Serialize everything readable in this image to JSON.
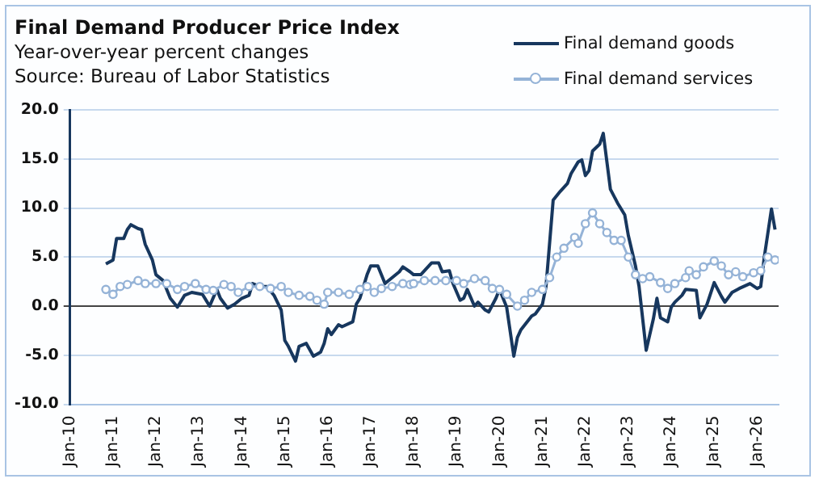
{
  "chart_data": {
    "type": "line",
    "title": "Final Demand Producer Price Index",
    "subtitle": "Year-over-year percent changes",
    "annotations": [
      "Source: Bureau of Labor Statistics"
    ],
    "legend": "top right",
    "grid": "y",
    "xlim": [
      "2010-01",
      "2026-07"
    ],
    "xticks": [
      {
        "value": "2010-01",
        "label": "Jan-10"
      },
      {
        "value": "2011-01",
        "label": "Jan-11"
      },
      {
        "value": "2012-01",
        "label": "Jan-12"
      },
      {
        "value": "2013-01",
        "label": "Jan-13"
      },
      {
        "value": "2014-01",
        "label": "Jan-14"
      },
      {
        "value": "2015-01",
        "label": "Jan-15"
      },
      {
        "value": "2016-01",
        "label": "Jan-16"
      },
      {
        "value": "2017-01",
        "label": "Jan-17"
      },
      {
        "value": "2018-01",
        "label": "Jan-18"
      },
      {
        "value": "2019-01",
        "label": "Jan-19"
      },
      {
        "value": "2020-01",
        "label": "Jan-20"
      },
      {
        "value": "2021-01",
        "label": "Jan-21"
      },
      {
        "value": "2022-01",
        "label": "Jan-22"
      },
      {
        "value": "2023-01",
        "label": "Jan-23"
      },
      {
        "value": "2024-01",
        "label": "Jan-24"
      },
      {
        "value": "2025-01",
        "label": "Jan-25"
      },
      {
        "value": "2026-01",
        "label": "Jan-26"
      }
    ],
    "ylim": [
      -10,
      20
    ],
    "yticks": [
      {
        "value": -10,
        "label": "-10.0"
      },
      {
        "value": -5,
        "label": "-5.0"
      },
      {
        "value": 0,
        "label": "0.0"
      },
      {
        "value": 5,
        "label": "5.0"
      },
      {
        "value": 10,
        "label": "10.0"
      },
      {
        "value": 15,
        "label": "15.0"
      },
      {
        "value": 20,
        "label": "20.0"
      }
    ],
    "series": [
      {
        "name": "Final demand goods",
        "color": "#17375e",
        "marker": "none",
        "x": [
          "2010-11",
          "2011-01",
          "2011-02",
          "2011-04",
          "2011-05",
          "2011-06",
          "2011-08",
          "2011-09",
          "2011-10",
          "2011-12",
          "2012-01",
          "2012-03",
          "2012-05",
          "2012-07",
          "2012-09",
          "2012-11",
          "2013-02",
          "2013-04",
          "2013-06",
          "2013-07",
          "2013-09",
          "2013-11",
          "2014-01",
          "2014-03",
          "2014-04",
          "2014-06",
          "2014-08",
          "2014-10",
          "2014-12",
          "2015-01",
          "2015-02",
          "2015-04",
          "2015-05",
          "2015-07",
          "2015-09",
          "2015-11",
          "2015-12",
          "2016-01",
          "2016-02",
          "2016-04",
          "2016-05",
          "2016-08",
          "2016-09",
          "2016-10",
          "2016-12",
          "2017-01",
          "2017-03",
          "2017-05",
          "2017-07",
          "2017-09",
          "2017-10",
          "2017-12",
          "2018-01",
          "2018-03",
          "2018-06",
          "2018-08",
          "2018-09",
          "2018-11",
          "2018-12",
          "2019-02",
          "2019-03",
          "2019-04",
          "2019-06",
          "2019-07",
          "2019-09",
          "2019-10",
          "2019-12",
          "2020-01",
          "2020-03",
          "2020-05",
          "2020-06",
          "2020-07",
          "2020-10",
          "2020-11",
          "2021-01",
          "2021-02",
          "2021-04",
          "2021-06",
          "2021-08",
          "2021-09",
          "2021-11",
          "2021-12",
          "2022-01",
          "2022-02",
          "2022-03",
          "2022-05",
          "2022-06",
          "2022-08",
          "2022-10",
          "2022-12",
          "2023-01",
          "2023-03",
          "2023-04",
          "2023-06",
          "2023-08",
          "2023-09",
          "2023-10",
          "2023-12",
          "2024-01",
          "2024-02",
          "2024-04",
          "2024-05",
          "2024-08",
          "2024-09",
          "2024-11",
          "2025-01",
          "2025-03",
          "2025-04",
          "2025-06",
          "2025-08",
          "2025-11",
          "2026-01",
          "2026-02",
          "2026-03",
          "2026-05",
          "2026-06"
        ],
        "values": [
          4.3,
          4.7,
          6.9,
          6.9,
          7.8,
          8.3,
          7.9,
          7.8,
          6.3,
          4.7,
          3.2,
          2.6,
          0.8,
          -0.1,
          1.1,
          1.4,
          1.2,
          0.0,
          1.7,
          0.8,
          -0.2,
          0.2,
          0.8,
          1.1,
          2.3,
          2.0,
          2.0,
          1.1,
          -0.4,
          -3.5,
          -4.1,
          -5.6,
          -4.1,
          -3.8,
          -5.1,
          -4.7,
          -3.8,
          -2.3,
          -2.9,
          -1.9,
          -2.1,
          -1.6,
          0.2,
          0.8,
          3.2,
          4.1,
          4.1,
          2.3,
          2.9,
          3.5,
          4.0,
          3.5,
          3.2,
          3.2,
          4.4,
          4.4,
          3.5,
          3.6,
          2.3,
          0.6,
          0.8,
          1.7,
          0.0,
          0.4,
          -0.4,
          -0.6,
          0.8,
          1.7,
          -0.1,
          -5.1,
          -3.2,
          -2.4,
          -1.0,
          -0.8,
          0.2,
          2.0,
          10.8,
          11.7,
          12.5,
          13.5,
          14.7,
          14.9,
          13.3,
          13.8,
          15.8,
          16.5,
          17.6,
          11.9,
          10.5,
          9.3,
          7.2,
          4.1,
          2.0,
          -4.5,
          -1.3,
          0.8,
          -1.2,
          -1.6,
          -0.1,
          0.4,
          1.1,
          1.7,
          1.6,
          -1.2,
          0.2,
          2.4,
          1.0,
          0.4,
          1.4,
          1.8,
          2.3,
          1.8,
          2.0,
          5.0,
          9.9,
          7.8
        ]
      },
      {
        "name": "Final demand services",
        "color": "#95b3d7",
        "marker": "circle",
        "x": [
          "2010-11",
          "2011-01",
          "2011-03",
          "2011-05",
          "2011-08",
          "2011-10",
          "2012-01",
          "2012-04",
          "2012-07",
          "2012-09",
          "2012-12",
          "2013-03",
          "2013-05",
          "2013-08",
          "2013-10",
          "2013-12",
          "2014-03",
          "2014-06",
          "2014-09",
          "2014-12",
          "2015-02",
          "2015-05",
          "2015-08",
          "2015-10",
          "2015-12",
          "2016-01",
          "2016-04",
          "2016-07",
          "2016-10",
          "2016-12",
          "2017-02",
          "2017-04",
          "2017-07",
          "2017-10",
          "2017-12",
          "2018-01",
          "2018-04",
          "2018-07",
          "2018-10",
          "2019-01",
          "2019-03",
          "2019-06",
          "2019-09",
          "2019-11",
          "2020-01",
          "2020-03",
          "2020-06",
          "2020-08",
          "2020-10",
          "2021-01",
          "2021-03",
          "2021-05",
          "2021-07",
          "2021-10",
          "2021-11",
          "2022-01",
          "2022-03",
          "2022-05",
          "2022-07",
          "2022-09",
          "2022-11",
          "2023-01",
          "2023-03",
          "2023-05",
          "2023-07",
          "2023-10",
          "2023-12",
          "2024-02",
          "2024-05",
          "2024-06",
          "2024-08",
          "2024-10",
          "2025-01",
          "2025-03",
          "2025-05",
          "2025-07",
          "2025-09",
          "2025-12",
          "2026-02",
          "2026-04",
          "2026-06"
        ],
        "values": [
          1.7,
          1.2,
          2.0,
          2.2,
          2.6,
          2.3,
          2.3,
          2.3,
          1.7,
          2.0,
          2.3,
          1.7,
          1.6,
          2.2,
          2.0,
          1.4,
          2.0,
          2.0,
          1.8,
          2.0,
          1.4,
          1.1,
          1.0,
          0.6,
          0.2,
          1.4,
          1.4,
          1.2,
          1.7,
          2.0,
          1.4,
          1.8,
          2.0,
          2.3,
          2.2,
          2.3,
          2.6,
          2.6,
          2.6,
          2.6,
          2.3,
          2.8,
          2.6,
          1.8,
          1.7,
          1.2,
          0.0,
          0.6,
          1.4,
          1.7,
          2.9,
          5.0,
          5.9,
          7.0,
          6.4,
          8.4,
          9.5,
          8.4,
          7.5,
          6.7,
          6.7,
          5.0,
          3.2,
          2.8,
          3.0,
          2.4,
          1.8,
          2.3,
          2.9,
          3.6,
          3.2,
          4.0,
          4.6,
          4.1,
          3.2,
          3.5,
          3.0,
          3.4,
          3.6,
          5.0,
          4.7
        ]
      }
    ]
  }
}
